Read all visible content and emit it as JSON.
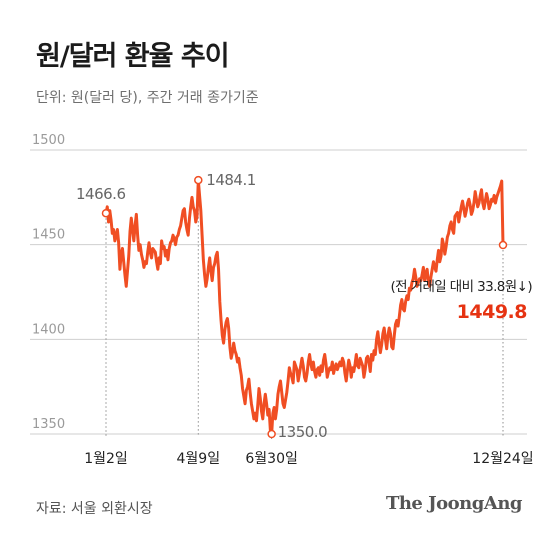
{
  "title": "원/달러 환율 추이",
  "subtitle": "단위: 원(달러 당), 주간 거래 종가기준",
  "source": "자료: 서울 외환시장",
  "brand": "The JoongAng",
  "colors": {
    "line": "#f04e23",
    "last_value": "#e63312",
    "grid": "#cfcfcf",
    "tick_text": "#9a9a9a",
    "annotation_text": "#666666",
    "dark_text": "#222222"
  },
  "chart_data": {
    "type": "line",
    "x_ticks": [
      "1월2일",
      "4월9일",
      "6월30일",
      "12월24일"
    ],
    "y_ticks": [
      1500,
      1450,
      1400,
      1350
    ],
    "ylim": [
      1345,
      1510
    ],
    "grid": true,
    "annotations": {
      "start": "1466.6",
      "high": "1484.1",
      "low": "1350.0",
      "change_note": "(전 거래일 대비 33.8원↓)",
      "last": "1449.8"
    },
    "series": [
      {
        "values": [
          1466.6,
          1470,
          1462,
          1468,
          1463,
          1456,
          1458,
          1452,
          1455,
          1458,
          1451,
          1437,
          1445,
          1448,
          1441,
          1434,
          1428,
          1436,
          1444,
          1457,
          1464,
          1458,
          1452,
          1460,
          1466,
          1455,
          1447,
          1450,
          1445,
          1442,
          1438,
          1441,
          1440,
          1446,
          1451,
          1446,
          1443,
          1448,
          1447,
          1446,
          1441,
          1437,
          1443,
          1440,
          1452,
          1448,
          1449,
          1444,
          1447,
          1442,
          1448,
          1451,
          1452,
          1455,
          1453,
          1450,
          1454,
          1455,
          1458,
          1460,
          1464,
          1468,
          1469,
          1462,
          1458,
          1455,
          1464,
          1470,
          1475,
          1470,
          1468,
          1462,
          1465,
          1484.1,
          1476,
          1468,
          1455,
          1442,
          1434,
          1428,
          1432,
          1438,
          1443,
          1436,
          1431,
          1438,
          1440,
          1444,
          1446,
          1437,
          1420,
          1410,
          1402,
          1398,
          1405,
          1409,
          1411,
          1406,
          1396,
          1390,
          1393,
          1398,
          1394,
          1392,
          1388,
          1390,
          1385,
          1381,
          1374,
          1370,
          1366,
          1373,
          1375,
          1379,
          1372,
          1366,
          1362,
          1358,
          1361,
          1357,
          1365,
          1374,
          1369,
          1362,
          1358,
          1366,
          1371,
          1366,
          1360,
          1363,
          1352,
          1350.0,
          1361,
          1364,
          1358,
          1363,
          1371,
          1375,
          1378,
          1372,
          1366,
          1364,
          1368,
          1372,
          1378,
          1385,
          1382,
          1380,
          1377,
          1388,
          1386,
          1384,
          1378,
          1382,
          1386,
          1390,
          1386,
          1380,
          1378,
          1382,
          1388,
          1392,
          1387,
          1384,
          1388,
          1383,
          1380,
          1384,
          1385,
          1381,
          1386,
          1383,
          1389,
          1392,
          1387,
          1380,
          1383,
          1385,
          1384,
          1388,
          1382,
          1385,
          1387,
          1384,
          1386,
          1388,
          1386,
          1390,
          1388,
          1382,
          1378,
          1384,
          1389,
          1386,
          1380,
          1385,
          1383,
          1387,
          1392,
          1386,
          1385,
          1390,
          1388,
          1386,
          1380,
          1384,
          1390,
          1391,
          1388,
          1383,
          1392,
          1389,
          1394,
          1392,
          1400,
          1404,
          1398,
          1393,
          1397,
          1403,
          1406,
          1400,
          1395,
          1402,
          1406,
          1403,
          1396,
          1395,
          1402,
          1408,
          1410,
          1407,
          1412,
          1418,
          1421,
          1416,
          1415,
          1420,
          1423,
          1421,
          1427,
          1426,
          1430,
          1432,
          1437,
          1433,
          1428,
          1430,
          1432,
          1431,
          1434,
          1438,
          1431,
          1435,
          1437,
          1430,
          1428,
          1433,
          1437,
          1441,
          1438,
          1436,
          1442,
          1447,
          1441,
          1444,
          1453,
          1450,
          1445,
          1449,
          1454,
          1456,
          1460,
          1462,
          1458,
          1456,
          1465,
          1466,
          1467,
          1462,
          1466,
          1470,
          1473,
          1469,
          1465,
          1468,
          1472,
          1474,
          1471,
          1466,
          1468,
          1472,
          1478,
          1474,
          1470,
          1472,
          1476,
          1479,
          1472,
          1469,
          1473,
          1477,
          1474,
          1469,
          1471,
          1474,
          1473,
          1476,
          1472,
          1475,
          1477,
          1479,
          1481,
          1483.6,
          1449.8
        ]
      }
    ]
  }
}
